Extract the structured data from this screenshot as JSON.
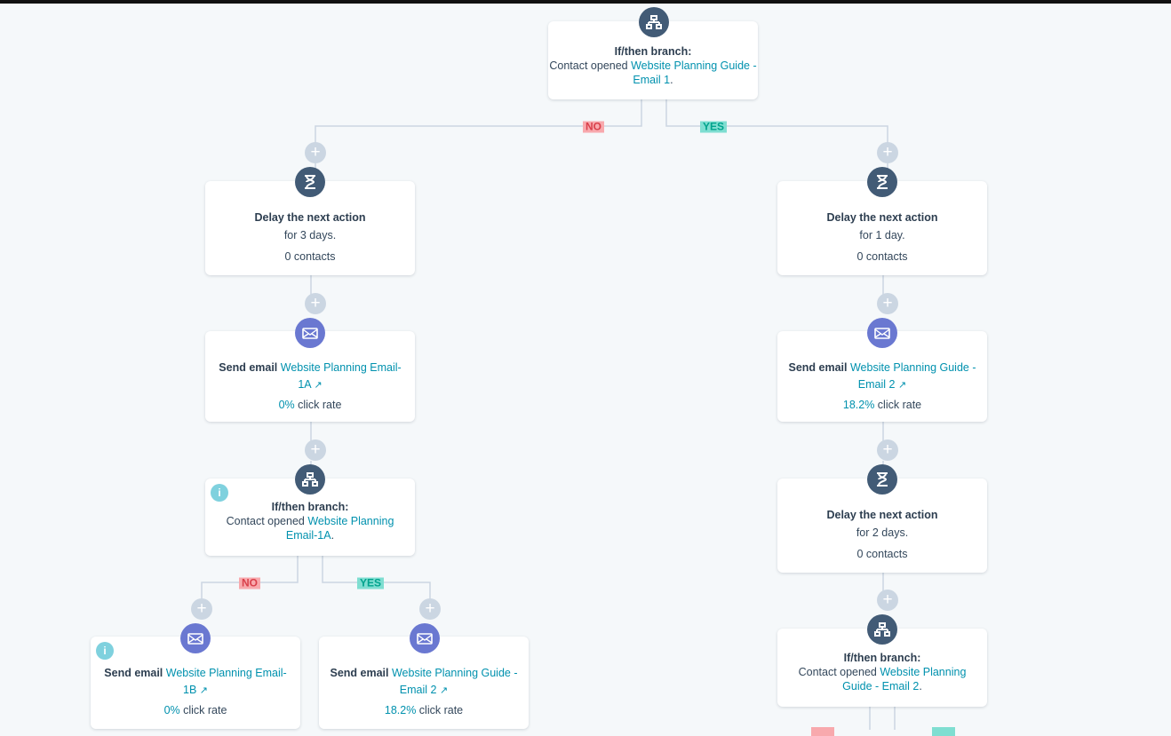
{
  "colors": {
    "background": "#f5f8fa",
    "action_icon": "#425b76",
    "email_icon": "#6a78d1",
    "link": "#0091ae",
    "no_badge": "#f8a9ad",
    "yes_badge": "#7fded1",
    "add_button": "#cbd6e2",
    "info_icon": "#7fd1de"
  },
  "labels": {
    "no": "NO",
    "yes": "YES",
    "add": "+"
  },
  "nodes": {
    "branch1": {
      "title": "If/then branch:",
      "prefix": "Contact opened ",
      "link": "Website Planning Guide - Email 1",
      "suffix": ".",
      "icon": "branch-icon"
    },
    "delay_left": {
      "title": "Delay the next action",
      "detail": "for 3 days.",
      "contacts": "0 contacts",
      "icon": "hourglass-icon"
    },
    "delay_right": {
      "title": "Delay the next action",
      "detail": "for 1 day.",
      "contacts": "0 contacts",
      "icon": "hourglass-icon"
    },
    "email_left": {
      "title": "Send email ",
      "link": "Website Planning Email-1A",
      "rate": "0%",
      "rate_label": " click rate",
      "icon": "email-icon"
    },
    "email_right": {
      "title": "Send email ",
      "link": "Website Planning Guide - Email 2",
      "rate": "18.2%",
      "rate_label": " click rate",
      "icon": "email-icon"
    },
    "branch_left": {
      "title": "If/then branch:",
      "prefix": "Contact opened ",
      "link": "Website Planning Email-1A",
      "suffix": ".",
      "icon": "branch-icon"
    },
    "delay_right2": {
      "title": "Delay the next action",
      "detail": "for 2 days.",
      "contacts": "0 contacts",
      "icon": "hourglass-icon"
    },
    "branch_right": {
      "title": "If/then branch:",
      "prefix": "Contact opened ",
      "link": "Website Planning Guide - Email 2",
      "suffix": ".",
      "icon": "branch-icon"
    },
    "email_bl": {
      "title": "Send email ",
      "link": "Website Planning Email-1B",
      "rate": "0%",
      "rate_label": " click rate",
      "icon": "email-icon"
    },
    "email_br": {
      "title": "Send email ",
      "link": "Website Planning Guide - Email 2",
      "rate": "18.2%",
      "rate_label": " click rate",
      "icon": "email-icon"
    }
  }
}
